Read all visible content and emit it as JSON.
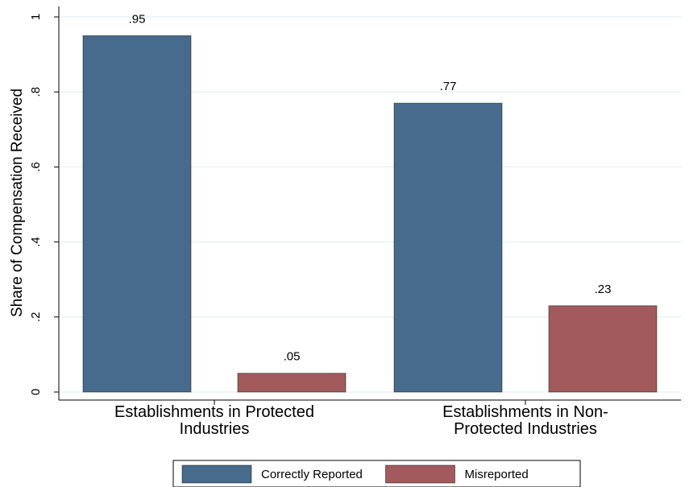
{
  "chart_data": {
    "type": "bar",
    "y_label": "Share of Compensation Received",
    "categories": [
      "Establishments in Protected Industries",
      "Establishments in Non-Protected Industries"
    ],
    "series": [
      {
        "name": "Correctly Reported",
        "color": "#476b8c",
        "values": [
          0.95,
          0.77
        ],
        "value_labels": [
          ".95",
          ".77"
        ]
      },
      {
        "name": "Misreported",
        "color": "#a25a5c",
        "values": [
          0.05,
          0.23
        ],
        "value_labels": [
          ".05",
          ".23"
        ]
      }
    ],
    "ylim": [
      0,
      1
    ],
    "yticks": [
      0,
      {
        "value": 0.2,
        "label": ".2"
      },
      {
        "value": 0.4,
        "label": ".4"
      },
      {
        "value": 0.6,
        "label": ".6"
      },
      {
        "value": 0.8,
        "label": ".8"
      },
      1
    ],
    "grid": true,
    "legend": "bottom"
  }
}
